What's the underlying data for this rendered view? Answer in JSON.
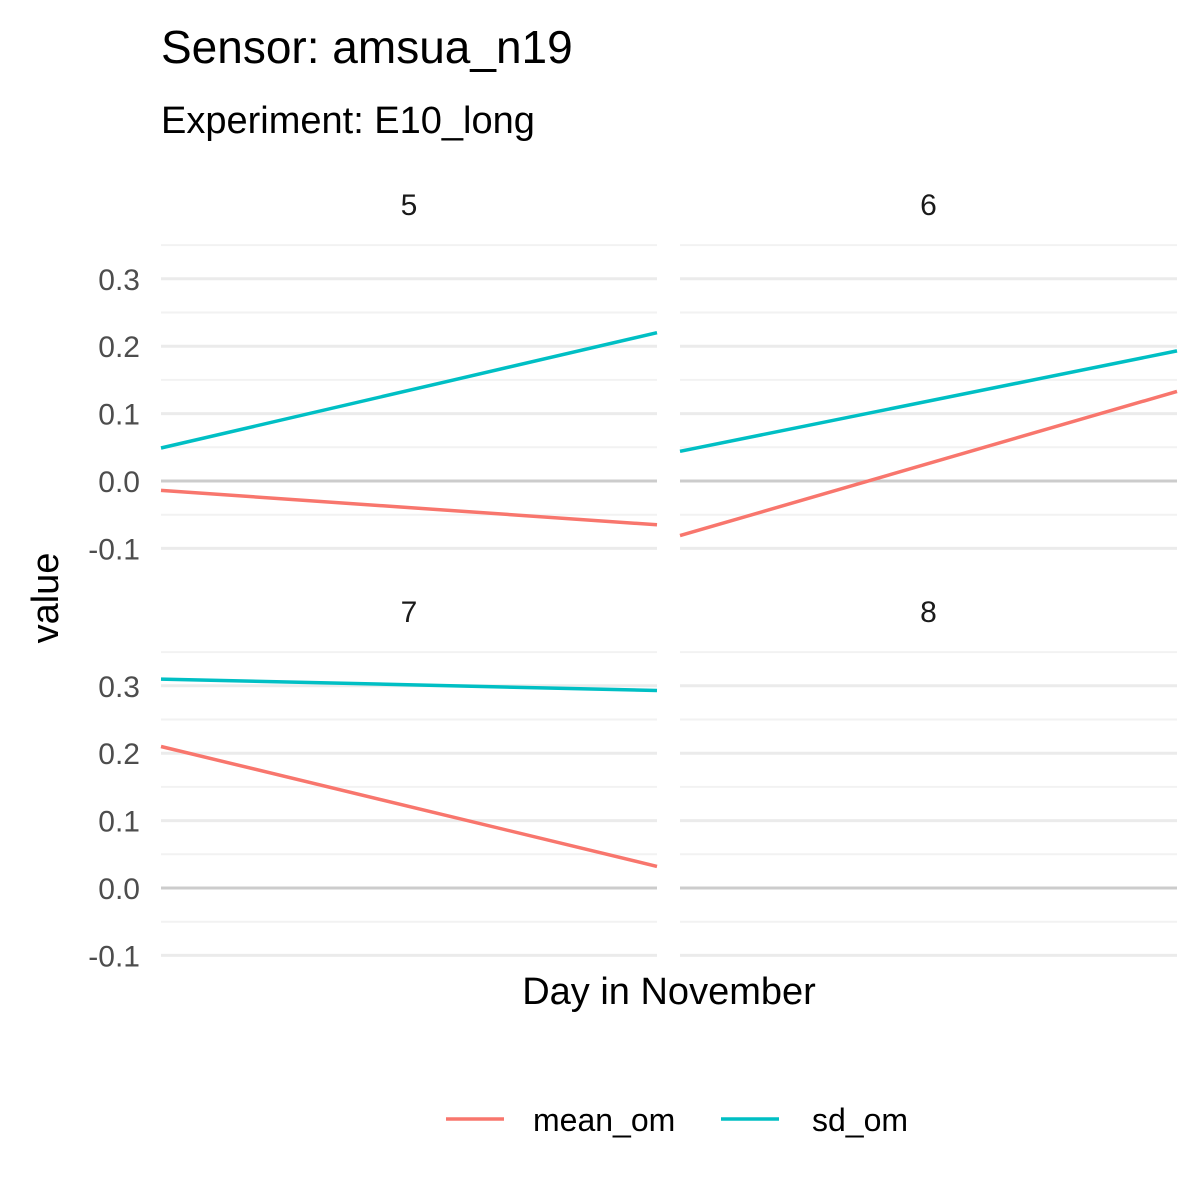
{
  "chart_data": {
    "type": "line",
    "title": "Sensor: amsua_n19",
    "subtitle": "Experiment: E10_long",
    "xlabel": "Day in November",
    "ylabel": "value",
    "ylim": [
      -0.1,
      0.35
    ],
    "yticks": [
      -0.1,
      0.0,
      0.1,
      0.2,
      0.3
    ],
    "ytick_labels": [
      "-0.1",
      "0.0",
      "0.1",
      "0.2",
      "0.3"
    ],
    "grid": true,
    "legend_position": "bottom",
    "legend": [
      {
        "name": "mean_om",
        "color": "#F8766D"
      },
      {
        "name": "sd_om",
        "color": "#00BFC4"
      }
    ],
    "panels": [
      {
        "label": "5",
        "series": [
          {
            "name": "mean_om",
            "values": [
              -0.014,
              -0.065
            ]
          },
          {
            "name": "sd_om",
            "values": [
              0.049,
              0.22
            ]
          }
        ]
      },
      {
        "label": "6",
        "series": [
          {
            "name": "mean_om",
            "values": [
              -0.081,
              0.133
            ]
          },
          {
            "name": "sd_om",
            "values": [
              0.044,
              0.193
            ]
          }
        ]
      },
      {
        "label": "7",
        "series": [
          {
            "name": "mean_om",
            "values": [
              0.21,
              0.032
            ]
          },
          {
            "name": "sd_om",
            "values": [
              0.31,
              0.293
            ]
          }
        ]
      },
      {
        "label": "8",
        "series": []
      }
    ]
  }
}
